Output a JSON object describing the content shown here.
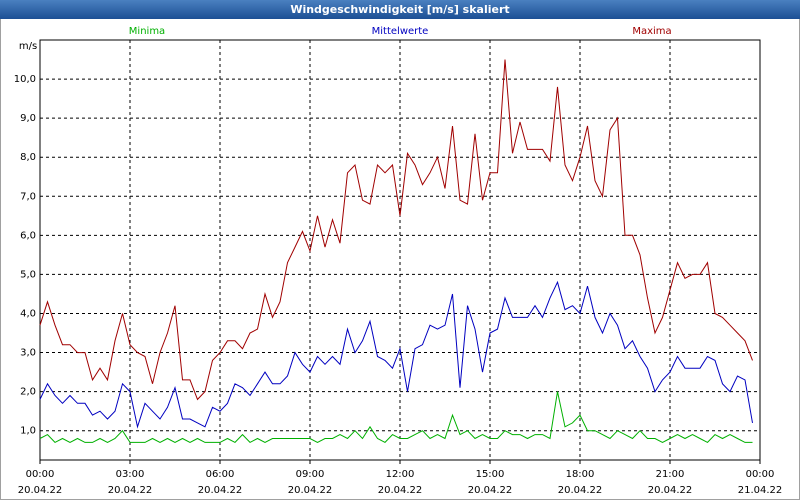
{
  "chart_data": {
    "type": "line",
    "title": "Windgeschwindigkeit [m/s] skaliert",
    "ylabel": "m/s",
    "x": [
      0,
      0.25,
      0.5,
      0.75,
      1,
      1.25,
      1.5,
      1.75,
      2,
      2.25,
      2.5,
      2.75,
      3,
      3.25,
      3.5,
      3.75,
      4,
      4.25,
      4.5,
      4.75,
      5,
      5.25,
      5.5,
      5.75,
      6,
      6.25,
      6.5,
      6.75,
      7,
      7.25,
      7.5,
      7.75,
      8,
      8.25,
      8.5,
      8.75,
      9,
      9.25,
      9.5,
      9.75,
      10,
      10.25,
      10.5,
      10.75,
      11,
      11.25,
      11.5,
      11.75,
      12,
      12.25,
      12.5,
      12.75,
      13,
      13.25,
      13.5,
      13.75,
      14,
      14.25,
      14.5,
      14.75,
      15,
      15.25,
      15.5,
      15.75,
      16,
      16.25,
      16.5,
      16.75,
      17,
      17.25,
      17.5,
      17.75,
      18,
      18.25,
      18.5,
      18.75,
      19,
      19.25,
      19.5,
      19.75,
      20,
      20.25,
      20.5,
      20.75,
      21,
      21.25,
      21.5,
      21.75,
      22,
      22.25,
      22.5,
      22.75,
      23,
      23.25,
      23.5,
      23.75
    ],
    "series": [
      {
        "name": "Minima",
        "color": "#00b000",
        "values": [
          0.8,
          0.9,
          0.7,
          0.8,
          0.7,
          0.8,
          0.7,
          0.7,
          0.8,
          0.7,
          0.8,
          1.0,
          0.7,
          0.7,
          0.7,
          0.8,
          0.7,
          0.8,
          0.7,
          0.8,
          0.7,
          0.8,
          0.7,
          0.7,
          0.7,
          0.8,
          0.7,
          0.9,
          0.7,
          0.8,
          0.7,
          0.8,
          0.8,
          0.8,
          0.8,
          0.8,
          0.8,
          0.7,
          0.8,
          0.8,
          0.9,
          0.8,
          1.0,
          0.8,
          1.1,
          0.8,
          0.7,
          0.9,
          0.8,
          0.8,
          0.9,
          1.0,
          0.8,
          0.9,
          0.8,
          1.4,
          0.9,
          1.0,
          0.8,
          0.9,
          0.8,
          0.8,
          1.0,
          0.9,
          0.9,
          0.8,
          0.9,
          0.9,
          0.8,
          2.0,
          1.1,
          1.2,
          1.4,
          1.0,
          1.0,
          0.9,
          0.8,
          1.0,
          0.9,
          0.8,
          1.0,
          0.8,
          0.8,
          0.7,
          0.8,
          0.9,
          0.8,
          0.9,
          0.8,
          0.7,
          0.9,
          0.8,
          0.9,
          0.8,
          0.7,
          0.7
        ]
      },
      {
        "name": "Mittelwerte",
        "color": "#0000c0",
        "values": [
          1.8,
          2.2,
          1.9,
          1.7,
          1.9,
          1.7,
          1.7,
          1.4,
          1.5,
          1.3,
          1.5,
          2.2,
          2.0,
          1.1,
          1.7,
          1.5,
          1.3,
          1.6,
          2.1,
          1.3,
          1.3,
          1.2,
          1.1,
          1.6,
          1.5,
          1.7,
          2.2,
          2.1,
          1.9,
          2.2,
          2.5,
          2.2,
          2.2,
          2.4,
          3.0,
          2.7,
          2.5,
          2.9,
          2.7,
          2.9,
          2.7,
          3.6,
          3.0,
          3.3,
          3.8,
          2.9,
          2.8,
          2.6,
          3.1,
          2.0,
          3.1,
          3.2,
          3.7,
          3.6,
          3.7,
          4.5,
          2.1,
          4.2,
          3.6,
          2.5,
          3.5,
          3.6,
          4.4,
          3.9,
          3.9,
          3.9,
          4.2,
          3.9,
          4.4,
          4.8,
          4.1,
          4.2,
          4.0,
          4.7,
          3.9,
          3.5,
          4.0,
          3.7,
          3.1,
          3.3,
          2.9,
          2.6,
          2.0,
          2.3,
          2.5,
          2.9,
          2.6,
          2.6,
          2.6,
          2.9,
          2.8,
          2.2,
          2.0,
          2.4,
          2.3,
          1.2
        ]
      },
      {
        "name": "Maxima",
        "color": "#a00000",
        "values": [
          3.7,
          4.3,
          3.7,
          3.2,
          3.2,
          3.0,
          3.0,
          2.3,
          2.6,
          2.3,
          3.3,
          4.0,
          3.2,
          3.0,
          2.9,
          2.2,
          3.0,
          3.5,
          4.2,
          2.3,
          2.3,
          1.8,
          2.0,
          2.8,
          3.0,
          3.3,
          3.3,
          3.1,
          3.5,
          3.6,
          4.5,
          3.9,
          4.3,
          5.3,
          5.7,
          6.1,
          5.6,
          6.5,
          5.7,
          6.4,
          5.8,
          7.6,
          7.8,
          6.9,
          6.8,
          7.8,
          7.6,
          7.8,
          6.5,
          8.1,
          7.8,
          7.3,
          7.6,
          8.0,
          7.2,
          8.8,
          6.9,
          6.8,
          8.6,
          6.9,
          7.6,
          7.6,
          10.5,
          8.1,
          8.9,
          8.2,
          8.2,
          8.2,
          7.9,
          9.8,
          7.8,
          7.4,
          8.0,
          8.8,
          7.4,
          7.0,
          8.7,
          9.0,
          6.0,
          6.0,
          5.5,
          4.4,
          3.5,
          3.9,
          4.6,
          5.3,
          4.9,
          5.0,
          5.0,
          5.3,
          4.0,
          3.9,
          3.7,
          3.5,
          3.3,
          2.8
        ]
      }
    ],
    "xlim": [
      0,
      24
    ],
    "xticks": [
      {
        "value": 0,
        "label": "00:00",
        "date": "20.04.22"
      },
      {
        "value": 3,
        "label": "03:00",
        "date": "20.04.22"
      },
      {
        "value": 6,
        "label": "06:00",
        "date": "20.04.22"
      },
      {
        "value": 9,
        "label": "09:00",
        "date": "20.04.22"
      },
      {
        "value": 12,
        "label": "12:00",
        "date": "20.04.22"
      },
      {
        "value": 15,
        "label": "15:00",
        "date": "20.04.22"
      },
      {
        "value": 18,
        "label": "18:00",
        "date": "20.04.22"
      },
      {
        "value": 21,
        "label": "21:00",
        "date": "20.04.22"
      },
      {
        "value": 24,
        "label": "00:00",
        "date": "21.04.22"
      }
    ],
    "ylim": [
      0.25,
      11.0
    ],
    "yticks": [
      {
        "value": 1,
        "label": "1,0"
      },
      {
        "value": 2,
        "label": "2,0"
      },
      {
        "value": 3,
        "label": "3,0"
      },
      {
        "value": 4,
        "label": "4,0"
      },
      {
        "value": 5,
        "label": "5,0"
      },
      {
        "value": 6,
        "label": "6,0"
      },
      {
        "value": 7,
        "label": "7,0"
      },
      {
        "value": 8,
        "label": "8,0"
      },
      {
        "value": 9,
        "label": "9,0"
      },
      {
        "value": 10,
        "label": "10,0"
      }
    ],
    "grid": true
  }
}
